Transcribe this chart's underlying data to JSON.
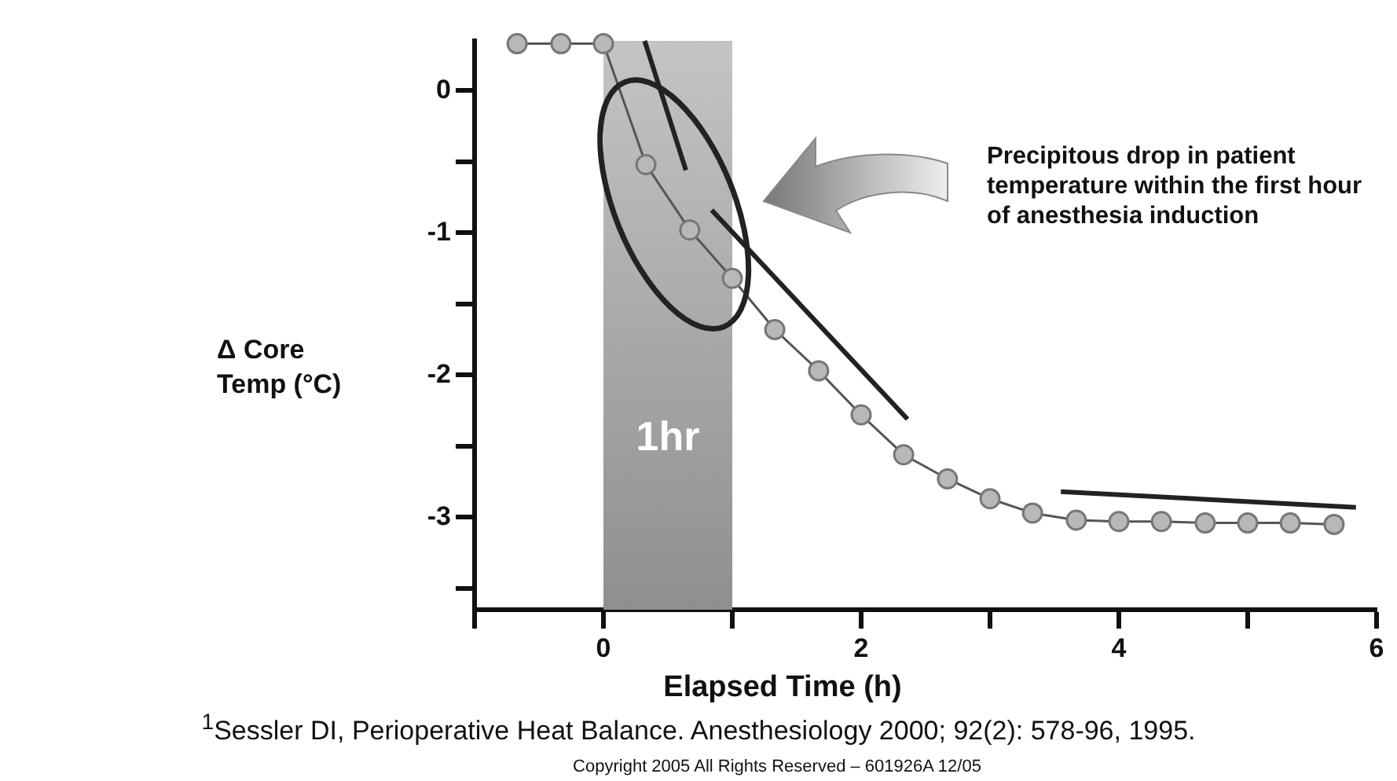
{
  "chart_data": {
    "type": "line",
    "xlabel": "Elapsed Time (h)",
    "ylabel": "Δ Core Temp (°C)",
    "x": [
      -0.67,
      -0.33,
      0,
      0.33,
      0.67,
      1,
      1.33,
      1.67,
      2,
      2.33,
      2.67,
      3,
      3.33,
      3.67,
      4,
      4.33,
      4.67,
      5,
      5.33,
      5.67
    ],
    "series": [
      {
        "color": "#555555",
        "values": [
          0.33,
          0.33,
          0.33,
          -0.52,
          -0.98,
          -1.32,
          -1.68,
          -1.97,
          -2.28,
          -2.56,
          -2.73,
          -2.87,
          -2.97,
          -3.02,
          -3.03,
          -3.03,
          -3.04,
          -3.04,
          -3.04,
          -3.05
        ]
      },
      {
        "type": "line",
        "color": "#222222",
        "marker": "none",
        "x": [
          0.32,
          0.64
        ],
        "values": [
          0.35,
          -0.56
        ]
      },
      {
        "type": "line",
        "color": "#222222",
        "marker": "none",
        "x": [
          0.84,
          2.36
        ],
        "values": [
          -0.84,
          -2.31
        ]
      },
      {
        "type": "line",
        "color": "#222222",
        "marker": "none",
        "x": [
          3.55,
          5.84
        ],
        "values": [
          -2.82,
          -2.93
        ]
      }
    ],
    "xlim": [
      -1,
      6
    ],
    "ylim": [
      -3.65,
      0.35
    ],
    "xticks": [
      {
        "value": -1,
        "label": null
      },
      0,
      {
        "value": 1,
        "label": null
      },
      2,
      {
        "value": 3,
        "label": null
      },
      4,
      {
        "value": 5,
        "label": null
      },
      6
    ],
    "yticks": [
      {
        "value": -3.5,
        "label": null
      },
      -3,
      {
        "value": -2.5,
        "label": null
      },
      -2,
      {
        "value": -1.5,
        "label": null
      },
      -1,
      {
        "value": -0.5,
        "label": null
      },
      0
    ],
    "bands": [
      {
        "axis": "x",
        "from": 0,
        "to": 1,
        "label": "1hr",
        "color": "#8f8f8f"
      }
    ],
    "annotations": [
      "Precipitous drop in patient temperature within the first hour of anesthesia induction",
      "$^{1}$Sessler DI, Perioperative Heat Balance. Anesthesiology 2000; 92(2): 578-96, 1995.",
      "Copyright 2005 All Rights Reserved – 601926A 12/05"
    ],
    "grid": false,
    "legend": false,
    "marker": "circle",
    "line_style": "solid"
  }
}
